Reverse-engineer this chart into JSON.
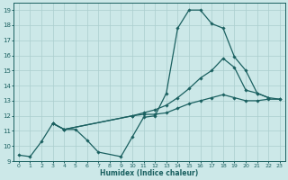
{
  "xlabel": "Humidex (Indice chaleur)",
  "bg_color": "#cce8e8",
  "grid_color": "#aacece",
  "line_color": "#1a6060",
  "xlim": [
    -0.5,
    23.5
  ],
  "ylim": [
    9,
    19.5
  ],
  "xticks": [
    0,
    1,
    2,
    3,
    4,
    5,
    6,
    7,
    8,
    9,
    10,
    11,
    12,
    13,
    14,
    15,
    16,
    17,
    18,
    19,
    20,
    21,
    22,
    23
  ],
  "yticks": [
    9,
    10,
    11,
    12,
    13,
    14,
    15,
    16,
    17,
    18,
    19
  ],
  "series": [
    {
      "x": [
        0,
        1,
        2,
        3,
        4,
        5,
        6,
        7,
        9,
        10,
        11,
        12,
        13,
        14,
        15,
        16,
        17,
        18,
        19,
        20,
        21,
        22
      ],
      "y": [
        9.4,
        9.3,
        10.3,
        11.5,
        11.1,
        11.1,
        10.4,
        9.6,
        9.3,
        10.6,
        11.9,
        12.0,
        13.5,
        17.8,
        19.0,
        19.0,
        18.1,
        17.8,
        15.9,
        15.0,
        13.5,
        13.2
      ]
    },
    {
      "x": [
        3,
        4,
        10,
        11,
        12,
        13,
        14,
        15,
        16,
        17,
        18,
        19,
        20,
        21,
        22,
        23
      ],
      "y": [
        11.5,
        11.1,
        12.0,
        12.1,
        12.1,
        12.2,
        12.5,
        12.8,
        13.0,
        13.2,
        13.4,
        13.2,
        13.0,
        13.0,
        13.1,
        13.1
      ]
    },
    {
      "x": [
        3,
        4,
        10,
        11,
        12,
        13,
        14,
        15,
        16,
        17,
        18,
        19,
        20,
        21,
        22,
        23
      ],
      "y": [
        11.5,
        11.1,
        12.0,
        12.2,
        12.4,
        12.7,
        13.2,
        13.8,
        14.5,
        15.0,
        15.8,
        15.2,
        13.7,
        13.5,
        13.2,
        13.1
      ]
    }
  ]
}
